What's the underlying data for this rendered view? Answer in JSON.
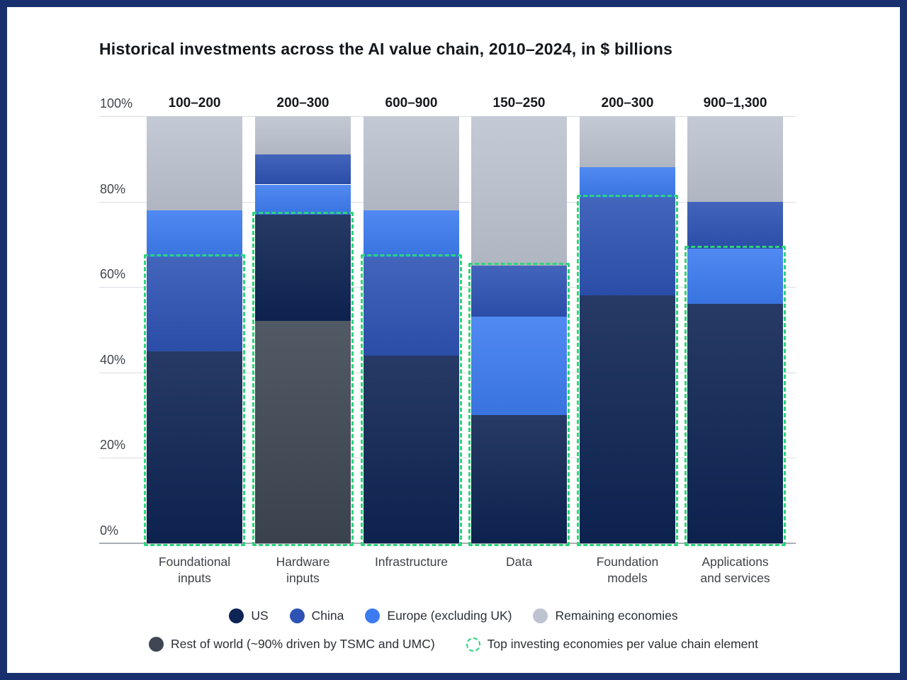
{
  "title": "Historical investments across the AI value chain, 2010–2024, in $ billions",
  "colors": {
    "us": "#0e2454",
    "china": "#2e53b4",
    "europe": "#3d7cf0",
    "remaining": "#bdc4d0",
    "row": "#3e4753",
    "highlight_green": "#2cd47a",
    "frame_border": "#18316e",
    "gridline": "#d8dce2"
  },
  "chart_data": {
    "type": "bar",
    "stacked": true,
    "orientation": "vertical",
    "units": "% share of investment",
    "ylim": [
      0,
      100
    ],
    "grid": true,
    "legend_position": "bottom",
    "yticks": [
      {
        "v": 100,
        "label": "100%"
      },
      {
        "v": 80,
        "label": "80%"
      },
      {
        "v": 60,
        "label": "60%"
      },
      {
        "v": 40,
        "label": "40%"
      },
      {
        "v": 20,
        "label": "20%"
      },
      {
        "v": 0,
        "label": "0%"
      }
    ],
    "bars": [
      {
        "category_label": "Foundational\ninputs",
        "range_label": "100–200",
        "segments": [
          {
            "key": "us",
            "name": "US",
            "value": 45
          },
          {
            "key": "china",
            "name": "China",
            "value": 22
          },
          {
            "key": "europe",
            "name": "Europe (excluding UK)",
            "value": 11
          },
          {
            "key": "remaining",
            "name": "Remaining economies",
            "value": 22
          }
        ],
        "highlight_top_pct": 67,
        "highlight_covers": [
          "US",
          "China"
        ]
      },
      {
        "category_label": "Hardware\ninputs",
        "range_label": "200–300",
        "segments": [
          {
            "key": "row",
            "name": "Rest of world (~90% driven by TSMC and UMC)",
            "value": 52
          },
          {
            "key": "us",
            "name": "US",
            "value": 25
          },
          {
            "key": "europe",
            "name": "Europe (excluding UK)",
            "value": 7
          },
          {
            "key": "china",
            "name": "China",
            "value": 7
          },
          {
            "key": "remaining",
            "name": "Remaining economies",
            "value": 9
          }
        ],
        "highlight_top_pct": 77,
        "highlight_covers": [
          "Rest of world (~90% driven by TSMC and UMC)",
          "US"
        ]
      },
      {
        "category_label": "Infrastructure",
        "range_label": "600–900",
        "segments": [
          {
            "key": "us",
            "name": "US",
            "value": 44
          },
          {
            "key": "china",
            "name": "China",
            "value": 23
          },
          {
            "key": "europe",
            "name": "Europe (excluding UK)",
            "value": 11
          },
          {
            "key": "remaining",
            "name": "Remaining economies",
            "value": 22
          }
        ],
        "highlight_top_pct": 67,
        "highlight_covers": [
          "US",
          "China"
        ]
      },
      {
        "category_label": "Data",
        "range_label": "150–250",
        "segments": [
          {
            "key": "us",
            "name": "US",
            "value": 30
          },
          {
            "key": "europe",
            "name": "Europe (excluding UK)",
            "value": 23
          },
          {
            "key": "china",
            "name": "China",
            "value": 12
          },
          {
            "key": "remaining",
            "name": "Remaining economies",
            "value": 35
          }
        ],
        "highlight_top_pct": 65,
        "highlight_covers": [
          "US",
          "Europe (excluding UK)",
          "China"
        ]
      },
      {
        "category_label": "Foundation\nmodels",
        "range_label": "200–300",
        "segments": [
          {
            "key": "us",
            "name": "US",
            "value": 58
          },
          {
            "key": "china",
            "name": "China",
            "value": 23
          },
          {
            "key": "europe",
            "name": "Europe (excluding UK)",
            "value": 7
          },
          {
            "key": "remaining",
            "name": "Remaining economies",
            "value": 12
          }
        ],
        "highlight_top_pct": 81,
        "highlight_covers": [
          "US",
          "China"
        ]
      },
      {
        "category_label": "Applications\nand services",
        "range_label": "900–1,300",
        "segments": [
          {
            "key": "us",
            "name": "US",
            "value": 56
          },
          {
            "key": "europe",
            "name": "Europe (excluding UK)",
            "value": 13
          },
          {
            "key": "china",
            "name": "China",
            "value": 11
          },
          {
            "key": "remaining",
            "name": "Remaining economies",
            "value": 20
          }
        ],
        "highlight_top_pct": 69,
        "highlight_covers": [
          "US",
          "Europe (excluding UK)"
        ]
      }
    ]
  },
  "legend": {
    "row1": [
      {
        "key": "us",
        "label": "US"
      },
      {
        "key": "china",
        "label": "China"
      },
      {
        "key": "europe",
        "label": "Europe (excluding UK)"
      },
      {
        "key": "remaining",
        "label": "Remaining economies"
      }
    ],
    "rest_of_world": {
      "key": "row",
      "label": "Rest of world (~90% driven by TSMC and UMC)"
    },
    "top_investing": {
      "label": "Top investing economies per value chain element"
    }
  }
}
